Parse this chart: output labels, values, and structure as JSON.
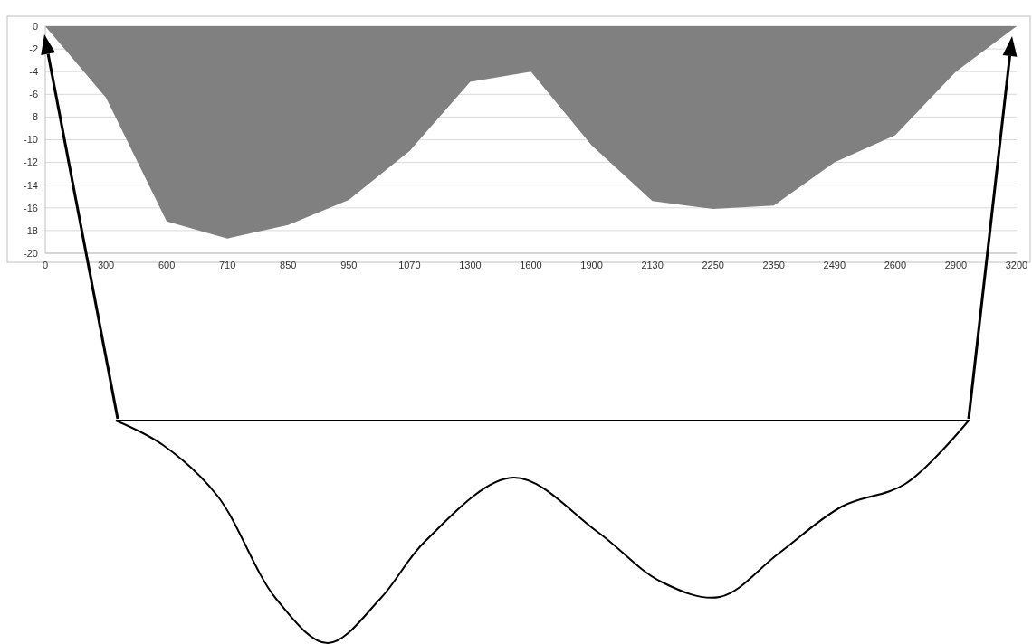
{
  "chart_data": {
    "type": "area",
    "color": "#808080",
    "categories": [
      "0",
      "300",
      "600",
      "710",
      "850",
      "950",
      "1070",
      "1300",
      "1600",
      "1900",
      "2130",
      "2250",
      "2350",
      "2490",
      "2600",
      "2900",
      "3200"
    ],
    "values": [
      0,
      -6.3,
      -17.2,
      -18.7,
      -17.5,
      -15.3,
      -11,
      -4.9,
      -4,
      -10.5,
      -15.4,
      -16.1,
      -15.8,
      -12,
      -9.6,
      -4,
      0
    ],
    "ylim": [
      -20,
      0
    ],
    "yticks": [
      -20,
      -18,
      -16,
      -14,
      -12,
      -10,
      -8,
      -6,
      -4,
      -2,
      0
    ],
    "grid": "y"
  }
}
